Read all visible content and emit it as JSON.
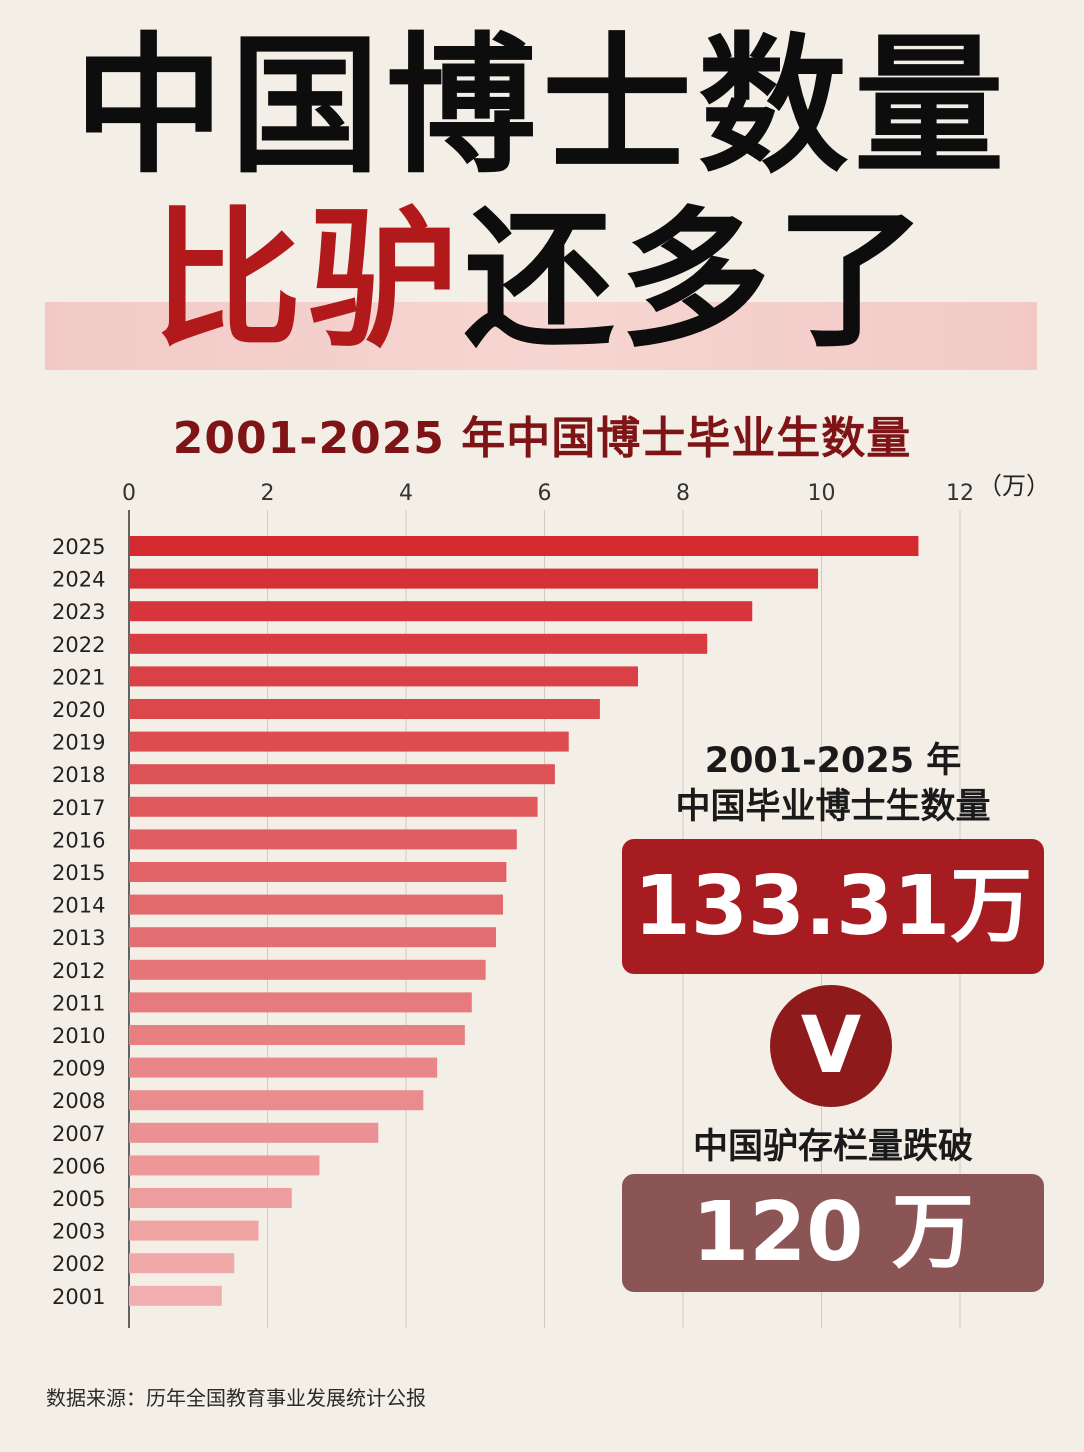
{
  "headline": {
    "line1": "中国博士数量",
    "line2_red": "比驴",
    "line2_black": "还多了"
  },
  "chart_data": {
    "type": "bar",
    "orientation": "horizontal",
    "title": "2001-2025 年中国博士毕业生数量",
    "unit": "（万）",
    "xlim": [
      0,
      12
    ],
    "xticks": [
      "0",
      "2",
      "4",
      "6",
      "8",
      "10",
      "12"
    ],
    "grid": true,
    "categories": [
      "2025",
      "2024",
      "2023",
      "2022",
      "2021",
      "2020",
      "2019",
      "2018",
      "2017",
      "2016",
      "2015",
      "2014",
      "2013",
      "2012",
      "2011",
      "2010",
      "2009",
      "2008",
      "2007",
      "2006",
      "2005",
      "2003",
      "2002",
      "2001"
    ],
    "values": [
      11.4,
      9.95,
      9.0,
      8.35,
      7.35,
      6.8,
      6.35,
      6.15,
      5.9,
      5.6,
      5.45,
      5.4,
      5.3,
      5.15,
      4.95,
      4.85,
      4.45,
      4.25,
      3.6,
      2.75,
      2.35,
      1.87,
      1.52,
      1.34
    ],
    "colors": {
      "top": "#d42a30",
      "bottom": "#f2aeae"
    }
  },
  "summary": {
    "total_label": "2001-2025 年\n中国毕业博士生数量",
    "total_value": "133.31万",
    "vs": "V",
    "donkey_label": "中国驴存栏量跌破",
    "donkey_value": "120 万",
    "colors": {
      "total_box": "#a71c21",
      "vs_circle": "#8e1a1c",
      "donkey_box": "#8b5555"
    }
  },
  "source": "数据来源：历年全国教育事业发展统计公报"
}
